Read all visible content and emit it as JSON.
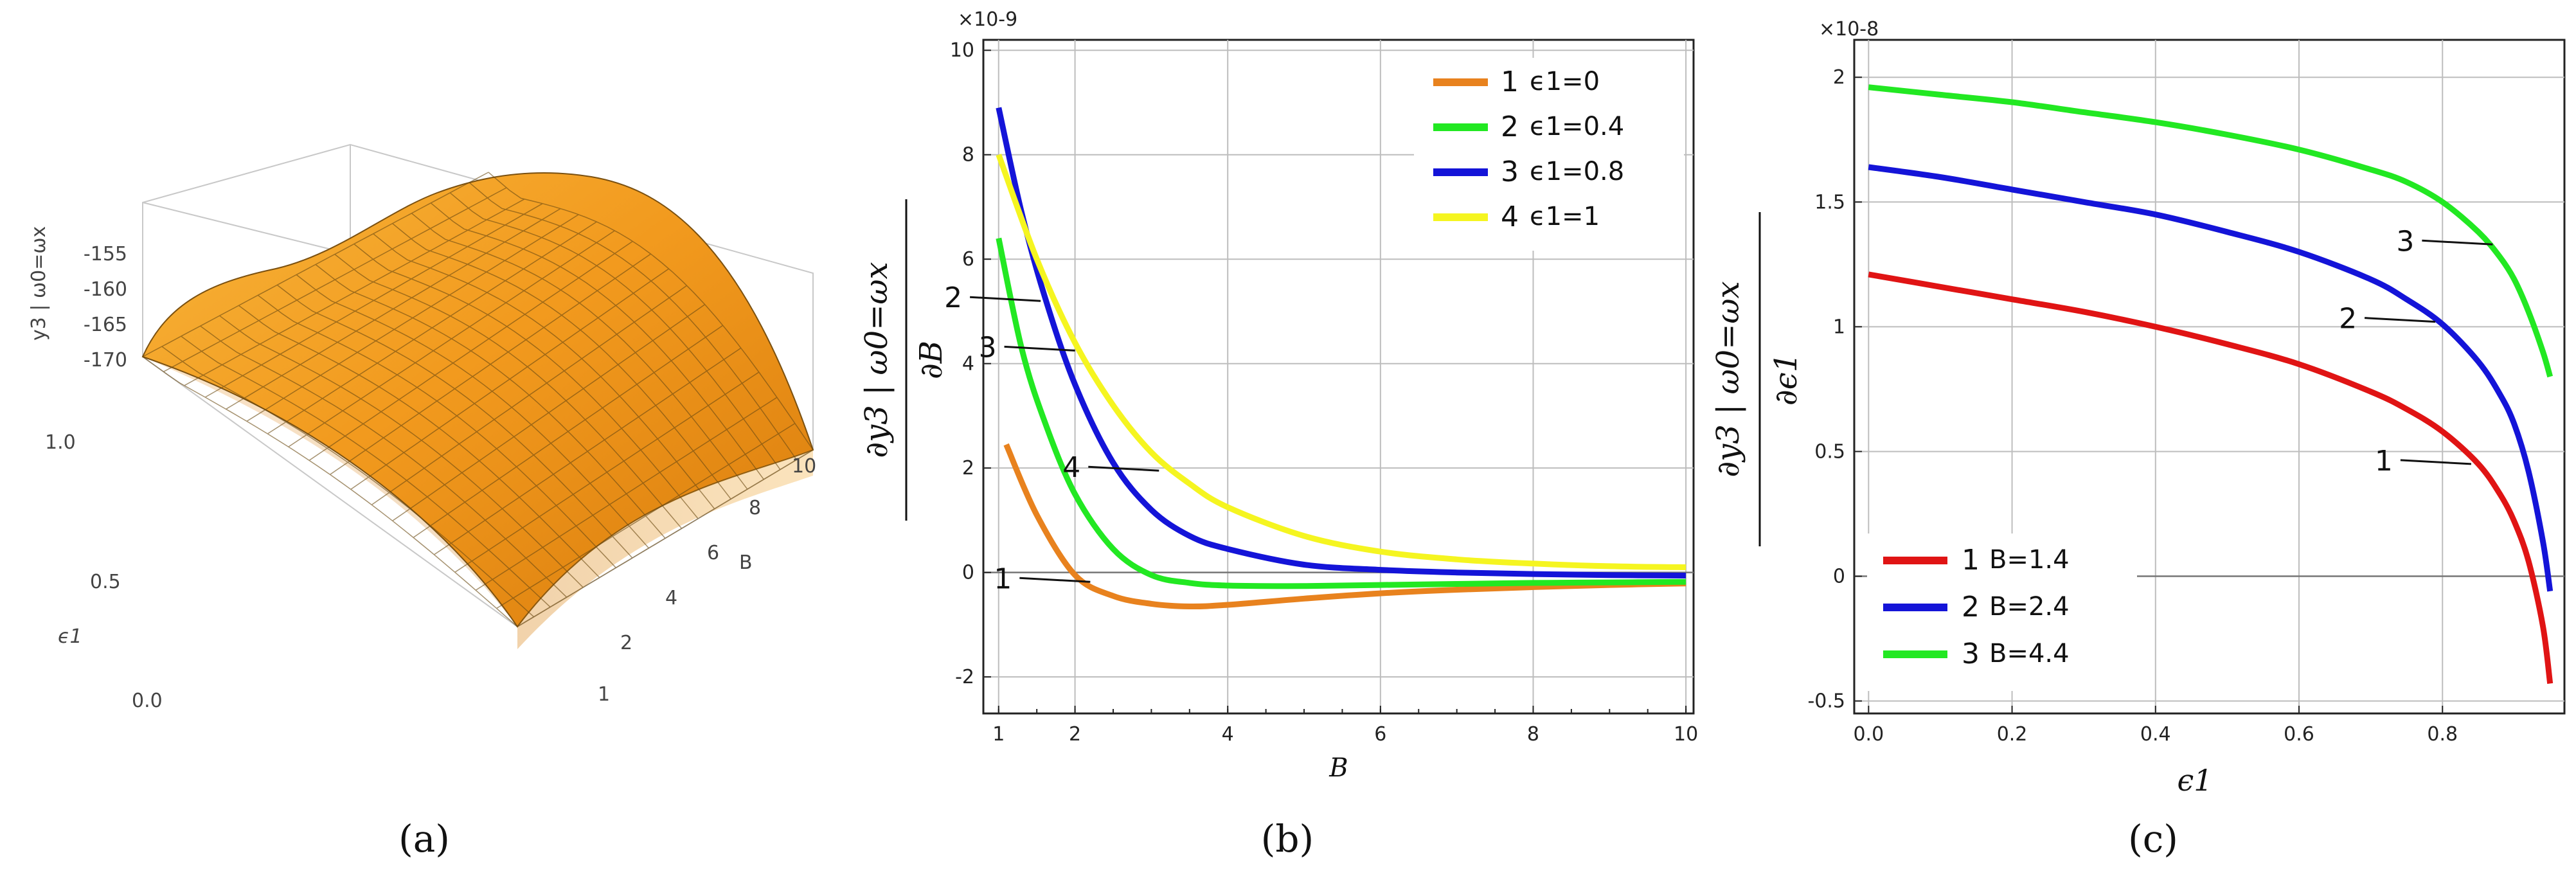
{
  "chart_data": [
    {
      "panel": "a",
      "type": "surface3d",
      "caption": "(a)",
      "z_label": "y3 | ω0=ωx",
      "z_ticks": [
        "-155",
        "-160",
        "-165",
        "-170"
      ],
      "x_label": "ϵ1",
      "x_ticks": [
        "1.0",
        "0.5",
        "0.0"
      ],
      "y_label": "B",
      "y_ticks": [
        "10",
        "8",
        "6",
        "4",
        "2",
        "1"
      ],
      "surface_color": "#f0a020"
    },
    {
      "panel": "b",
      "type": "line",
      "caption": "(b)",
      "scale_label": "×10-9",
      "xlabel": "B",
      "ylabel_num": "∂y3 | ω0=ωx",
      "ylabel_den": "∂B",
      "xlim": [
        0.8,
        10.1
      ],
      "ylim": [
        -2.7,
        10.2
      ],
      "xticks": [
        "1",
        "2",
        "4",
        "6",
        "8",
        "10"
      ],
      "yticks": [
        "-2",
        "0",
        "2",
        "4",
        "6",
        "8",
        "10"
      ],
      "series": [
        {
          "num": "1",
          "name": "ϵ1=0",
          "color": "#e8821e",
          "x": [
            1.1,
            1.5,
            2.0,
            2.5,
            3.0,
            3.5,
            4.0,
            5.0,
            6.0,
            7.0,
            8.0,
            9.0,
            10.0
          ],
          "y": [
            2.45,
            1.1,
            -0.05,
            -0.45,
            -0.6,
            -0.65,
            -0.62,
            -0.5,
            -0.4,
            -0.33,
            -0.28,
            -0.24,
            -0.21
          ]
        },
        {
          "num": "2",
          "name": "ϵ1=0.4",
          "color": "#22e822",
          "x": [
            1.0,
            1.3,
            1.6,
            2.0,
            2.5,
            3.0,
            3.5,
            4.0,
            5.0,
            6.0,
            7.0,
            8.0,
            9.0,
            10.0
          ],
          "y": [
            6.4,
            4.3,
            2.9,
            1.5,
            0.45,
            -0.05,
            -0.2,
            -0.25,
            -0.26,
            -0.24,
            -0.22,
            -0.2,
            -0.19,
            -0.18
          ]
        },
        {
          "num": "3",
          "name": "ϵ1=0.8",
          "color": "#1414d8",
          "x": [
            1.0,
            1.3,
            1.6,
            2.0,
            2.5,
            3.0,
            3.5,
            4.0,
            5.0,
            6.0,
            7.0,
            8.0,
            9.0,
            10.0
          ],
          "y": [
            8.9,
            6.9,
            5.3,
            3.6,
            2.1,
            1.2,
            0.7,
            0.45,
            0.15,
            0.05,
            0.0,
            -0.03,
            -0.05,
            -0.06
          ]
        },
        {
          "num": "4",
          "name": "ϵ1=1",
          "color": "#f5f520",
          "x": [
            1.0,
            1.5,
            2.0,
            2.5,
            3.0,
            3.5,
            4.0,
            5.0,
            6.0,
            7.0,
            8.0,
            9.0,
            10.0
          ],
          "y": [
            8.0,
            6.0,
            4.4,
            3.2,
            2.3,
            1.7,
            1.25,
            0.7,
            0.4,
            0.25,
            0.17,
            0.12,
            0.1
          ]
        }
      ],
      "annotations": [
        {
          "text": "1",
          "x": 2.2,
          "y": -0.18
        },
        {
          "text": "2",
          "x": 1.55,
          "y": 5.2
        },
        {
          "text": "3",
          "x": 2.0,
          "y": 4.25
        },
        {
          "text": "4",
          "x": 3.1,
          "y": 1.95
        }
      ],
      "legend": "top-right"
    },
    {
      "panel": "c",
      "type": "line",
      "caption": "(c)",
      "scale_label": "×10-8",
      "xlabel": "ϵ1",
      "ylabel_num": "∂y3 | ω0=ωx",
      "ylabel_den": "∂ϵ1",
      "xlim": [
        -0.02,
        0.97
      ],
      "ylim": [
        -0.55,
        2.15
      ],
      "xticks": [
        "0.0",
        "0.2",
        "0.4",
        "0.6",
        "0.8"
      ],
      "yticks": [
        "-0.5",
        "0",
        "0.5",
        "1",
        "1.5",
        "2"
      ],
      "series": [
        {
          "num": "1",
          "name": "B=1.4",
          "color": "#e01414",
          "x": [
            0.0,
            0.1,
            0.2,
            0.3,
            0.4,
            0.5,
            0.6,
            0.7,
            0.75,
            0.8,
            0.85,
            0.88,
            0.9,
            0.92,
            0.94,
            0.95
          ],
          "y": [
            1.21,
            1.16,
            1.11,
            1.06,
            1.0,
            0.93,
            0.85,
            0.74,
            0.67,
            0.58,
            0.45,
            0.33,
            0.22,
            0.06,
            -0.2,
            -0.43
          ]
        },
        {
          "num": "2",
          "name": "B=2.4",
          "color": "#1414d8",
          "x": [
            0.0,
            0.1,
            0.2,
            0.3,
            0.4,
            0.5,
            0.6,
            0.7,
            0.75,
            0.8,
            0.85,
            0.88,
            0.9,
            0.92,
            0.94,
            0.95
          ],
          "y": [
            1.64,
            1.6,
            1.55,
            1.5,
            1.45,
            1.38,
            1.3,
            1.19,
            1.11,
            1.01,
            0.86,
            0.73,
            0.61,
            0.42,
            0.14,
            -0.06
          ]
        },
        {
          "num": "3",
          "name": "B=4.4",
          "color": "#22e822",
          "x": [
            0.0,
            0.1,
            0.2,
            0.3,
            0.4,
            0.5,
            0.6,
            0.7,
            0.75,
            0.8,
            0.85,
            0.88,
            0.9,
            0.92,
            0.94,
            0.95
          ],
          "y": [
            1.96,
            1.93,
            1.9,
            1.86,
            1.82,
            1.77,
            1.71,
            1.63,
            1.58,
            1.5,
            1.38,
            1.28,
            1.19,
            1.06,
            0.9,
            0.8
          ]
        }
      ],
      "annotations": [
        {
          "text": "1",
          "x": 0.84,
          "y": 0.45
        },
        {
          "text": "2",
          "x": 0.79,
          "y": 1.02
        },
        {
          "text": "3",
          "x": 0.87,
          "y": 1.33
        }
      ],
      "legend": "bottom-left"
    }
  ]
}
